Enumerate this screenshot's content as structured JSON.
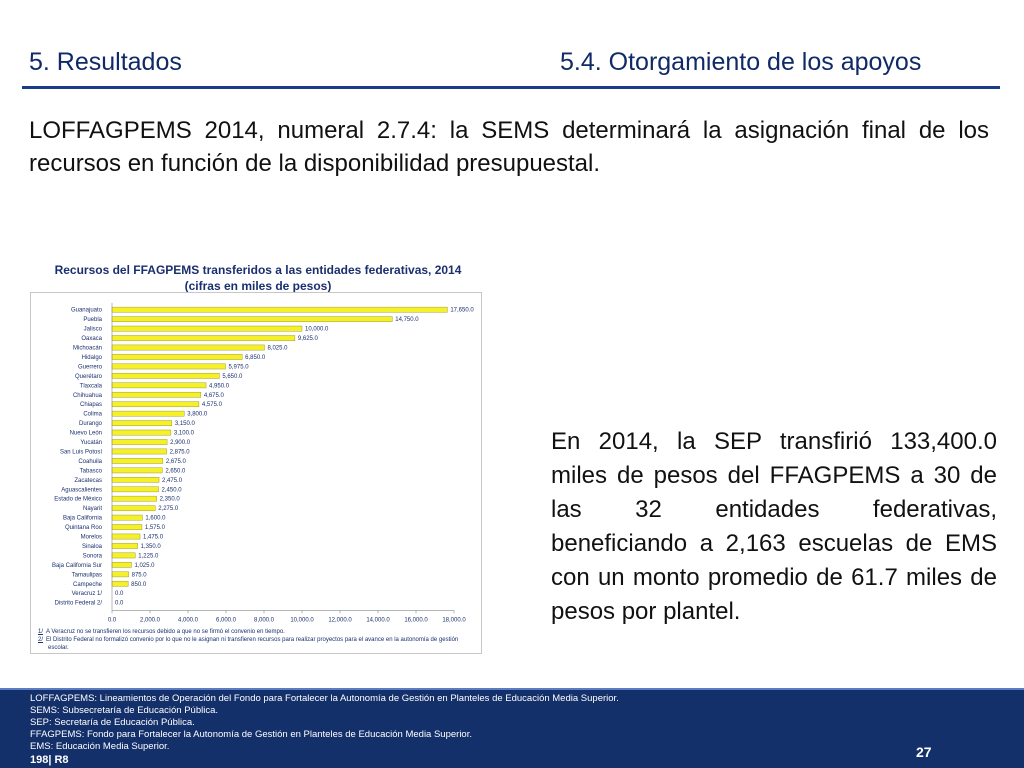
{
  "header": {
    "section_title": "5. Resultados",
    "subsection_title": "5.4. Otorgamiento de los apoyos"
  },
  "intro_text": "LOFFAGPEMS 2014, numeral 2.7.4: la SEMS determinará la asignación final de los recursos en función de la disponibilidad presupuestal.",
  "chart_data": {
    "type": "bar",
    "orientation": "horizontal",
    "title": "Recursos del FFAGPEMS transferidos a las entidades federativas, 2014",
    "subtitle": "(cifras en miles de pesos)",
    "categories": [
      "Guanajuato",
      "Puebla",
      "Jalisco",
      "Oaxaca",
      "Michoacán",
      "Hidalgo",
      "Guerrero",
      "Querétaro",
      "Tlaxcala",
      "Chihuahua",
      "Chiapas",
      "Colima",
      "Durango",
      "Nuevo León",
      "Yucatán",
      "San Luis Potosí",
      "Coahuila",
      "Tabasco",
      "Zacatecas",
      "Aguascalientes",
      "Estado de México",
      "Nayarit",
      "Baja California",
      "Quintana Roo",
      "Morelos",
      "Sinaloa",
      "Sonora",
      "Baja California Sur",
      "Tamaulipas",
      "Campeche",
      "Veracruz 1/",
      "Distrito Federal 2/"
    ],
    "values": [
      17650,
      14750,
      10000,
      9625,
      8025,
      6850,
      5975,
      5650,
      4950,
      4675,
      4575,
      3800,
      3150,
      3100,
      2900,
      2875,
      2675,
      2650,
      2475,
      2450,
      2350,
      2275,
      1600,
      1575,
      1475,
      1350,
      1225,
      1025,
      875,
      850,
      0,
      0
    ],
    "value_labels": [
      "17,650.0",
      "14,750.0",
      "10,000.0",
      "9,625.0",
      "8,025.0",
      "6,850.0",
      "5,975.0",
      "5,650.0",
      "4,950.0",
      "4,675.0",
      "4,575.0",
      "3,800.0",
      "3,150.0",
      "3,100.0",
      "2,900.0",
      "2,875.0",
      "2,675.0",
      "2,650.0",
      "2,475.0",
      "2,450.0",
      "2,350.0",
      "2,275.0",
      "1,600.0",
      "1,575.0",
      "1,475.0",
      "1,350.0",
      "1,225.0",
      "1,025.0",
      "875.0",
      "850.0",
      "0.0",
      "0.0"
    ],
    "x_ticks": [
      0,
      2000,
      4000,
      6000,
      8000,
      10000,
      12000,
      14000,
      16000,
      18000
    ],
    "x_tick_labels": [
      "0.0",
      "2,000.0",
      "4,000.0",
      "6,000.0",
      "8,000.0",
      "10,000.0",
      "12,000.0",
      "14,000.0",
      "16,000.0",
      "18,000.0"
    ],
    "xlim": [
      0,
      18000
    ],
    "bar_color": "#f5f028",
    "bar_edge_color": "#8a8a2a",
    "grid": false,
    "notes": [
      {
        "key": "1/",
        "text": "A Veracruz no se transfieren los recursos debido a que no se firmó el convenio en tiempo."
      },
      {
        "key": "2/",
        "text": "El Distrito Federal no formalizó convenio por lo que no le asignan ni transfieren recursos para realizar proyectos para el avance en la autonomía de gestión escolar."
      }
    ]
  },
  "summary_text": "En 2014, la SEP transfirió 133,400.0 miles de pesos del FFAGPEMS a 30 de las 32 entidades federativas, beneficiando a 2,163 escuelas de EMS con un monto promedio de 61.7 miles de pesos por plantel.",
  "footer": {
    "glossary": [
      "LOFFAGPEMS: Lineamientos de Operación del Fondo para Fortalecer la Autonomía de Gestión en Planteles de Educación Media Superior.",
      "SEMS: Subsecretaría de Educación Pública.",
      "SEP: Secretaría de Educación Pública.",
      "FFAGPEMS: Fondo para Fortalecer la Autonomía de Gestión en Planteles de Educación Media Superior.",
      "EMS: Educación Media Superior."
    ],
    "page_number": "27",
    "slide_ref_a": "198",
    "slide_ref_b": "| R8"
  },
  "colors": {
    "title_blue": "#0f2a66",
    "footer_blue": "#14306a"
  }
}
